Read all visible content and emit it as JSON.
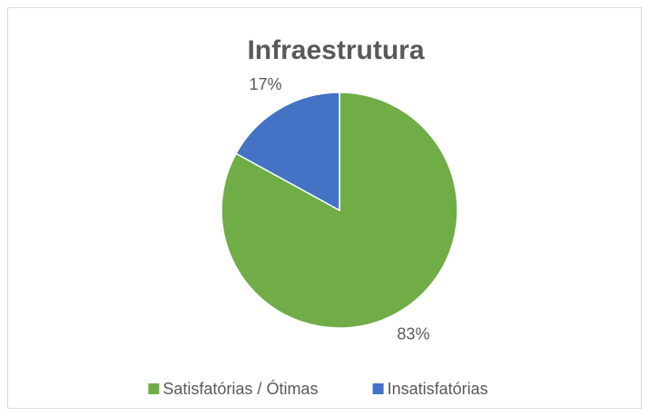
{
  "chart_data": {
    "type": "pie",
    "title": "Infraestrutura",
    "categories": [
      "Satisfatórias / Ótimas",
      "Insatisfatórias"
    ],
    "values": [
      83,
      17
    ],
    "value_labels": [
      "83%",
      "17%"
    ],
    "colors": [
      "#70ad47",
      "#4472c4"
    ],
    "legend": "bottom"
  }
}
